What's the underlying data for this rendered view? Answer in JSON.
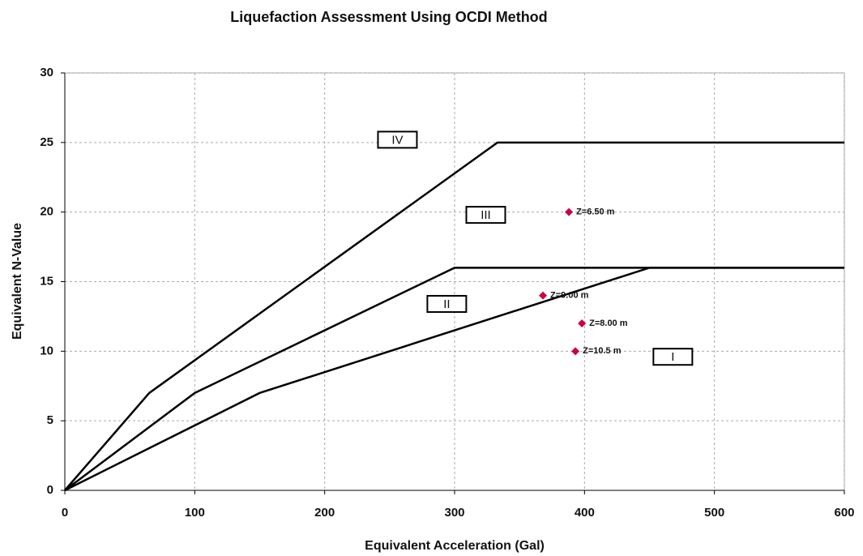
{
  "chart_data": {
    "type": "line",
    "title": "Liquefaction Assessment Using OCDI Method",
    "x_label": "Equivalent Acceleration (Gal)",
    "y_label": "Equivalent N-Value",
    "xlim": [
      0,
      600
    ],
    "xticks": [
      0,
      100,
      200,
      300,
      400,
      500,
      600
    ],
    "ylim": [
      0,
      30
    ],
    "yticks": [
      0,
      5,
      10,
      15,
      20,
      25,
      30
    ],
    "grid": true,
    "series": [
      {
        "type": "line",
        "color": "#000000",
        "x": [
          0,
          65,
          333,
          600
        ],
        "values": [
          0,
          7,
          25,
          25
        ]
      },
      {
        "type": "line",
        "color": "#000000",
        "x": [
          0,
          100,
          300,
          600
        ],
        "values": [
          0,
          7,
          16,
          16
        ]
      },
      {
        "type": "line",
        "color": "#000000",
        "x": [
          0,
          150,
          450,
          600
        ],
        "values": [
          0,
          7,
          16,
          16
        ]
      },
      {
        "type": "scatter",
        "color": "#cc0044",
        "x": [
          388,
          368,
          398,
          393
        ],
        "values": [
          20,
          14,
          12,
          10
        ],
        "labels": [
          "Z=6.50 m",
          "Z=9.00 m",
          "Z=8.00 m",
          "Z=10.5 m"
        ]
      }
    ],
    "annotations": [
      {
        "text": "IV",
        "x": 256,
        "y": 25.2
      },
      {
        "text": "III",
        "x": 324,
        "y": 19.8
      },
      {
        "text": "II",
        "x": 294,
        "y": 13.4
      },
      {
        "text": "I",
        "x": 468,
        "y": 9.6
      }
    ]
  }
}
